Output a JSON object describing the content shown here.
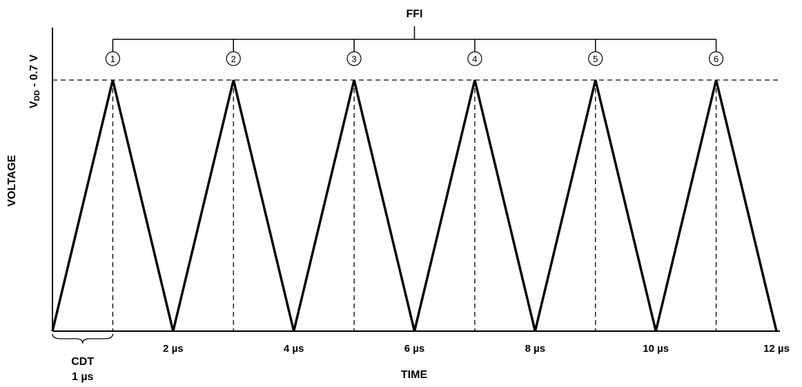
{
  "chart_data": {
    "type": "line",
    "title": "FFI",
    "xlabel": "TIME",
    "ylabel": "VOLTAGE",
    "y_peak_label_main": "V",
    "y_peak_label_sub": "DD",
    "y_peak_label_rest": " - 0.7 V",
    "x_unit": "µs",
    "xlim": [
      0,
      12
    ],
    "ylim": [
      0,
      1
    ],
    "series": [
      {
        "x": [
          0,
          1,
          2,
          3,
          4,
          5,
          6,
          7,
          8,
          9,
          10,
          11,
          12
        ],
        "y": [
          0,
          1,
          0,
          1,
          0,
          1,
          0,
          1,
          0,
          1,
          0,
          1,
          0
        ]
      }
    ],
    "x_ticks": [
      {
        "value": 2,
        "label": "2 µs"
      },
      {
        "value": 4,
        "label": "4 µs"
      },
      {
        "value": 6,
        "label": "6 µs"
      },
      {
        "value": 8,
        "label": "8 µs"
      },
      {
        "value": 10,
        "label": "10 µs"
      },
      {
        "value": 12,
        "label": "12 µs"
      }
    ],
    "peaks": [
      {
        "value": 1,
        "label": "1"
      },
      {
        "value": 3,
        "label": "2"
      },
      {
        "value": 5,
        "label": "3"
      },
      {
        "value": 7,
        "label": "4"
      },
      {
        "value": 9,
        "label": "5"
      },
      {
        "value": 11,
        "label": "6"
      }
    ],
    "cdt": {
      "label": "CDT",
      "value_label": "1 µs",
      "from": 0,
      "to": 1
    }
  }
}
